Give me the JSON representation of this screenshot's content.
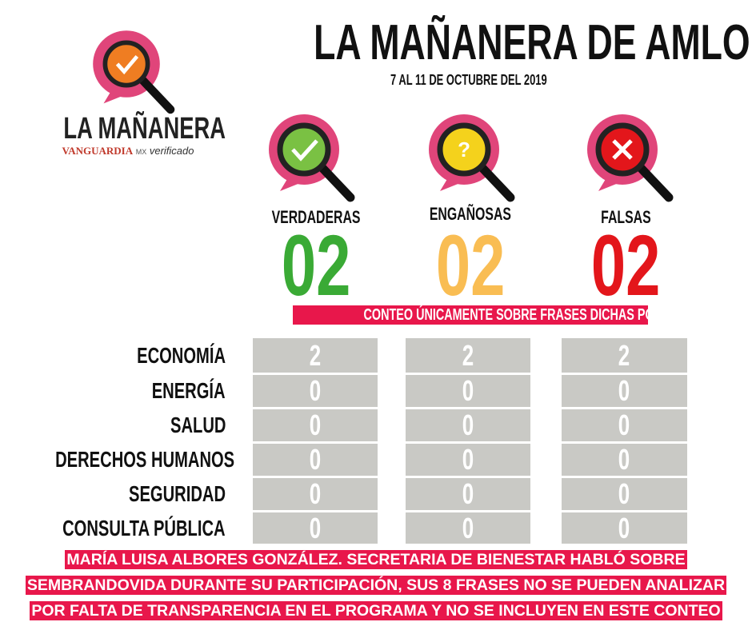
{
  "logo": {
    "title": "LA MAÑANERA",
    "brand": "VANGUARDIA",
    "brand_suffix": "MX",
    "partner": "verificado"
  },
  "header": {
    "title": "LA MAÑANERA DE AMLO",
    "subtitle": "7 AL 11 DE OCTUBRE DEL 2019"
  },
  "summary": [
    {
      "label": "VERDADERAS",
      "count": "02",
      "color": "#3aaa35"
    },
    {
      "label": "ENGAÑOSAS",
      "count": "02",
      "color": "#f9bd53"
    },
    {
      "label": "FALSAS",
      "count": "02",
      "color": "#e3161b"
    }
  ],
  "note": "CONTEO ÚNICAMENTE SOBRE FRASES DICHAS POR INVITADOS",
  "table": {
    "rows": [
      [
        "ECONOMÍA",
        2,
        2,
        2
      ],
      [
        "ENERGÍA",
        0,
        0,
        0
      ],
      [
        "SALUD",
        0,
        0,
        0
      ],
      [
        "DERECHOS HUMANOS",
        0,
        0,
        0
      ],
      [
        "SEGURIDAD",
        0,
        0,
        0
      ],
      [
        "CONSULTA PÚBLICA",
        0,
        0,
        0
      ]
    ]
  },
  "footer": "MARÍA LUISA ALBORES GONZÁLEZ. SECRETARIA DE BIENESTAR HABLÓ SOBRE SEMBRANDOVIDA DURANTE SU PARTICIPACIÓN, SUS 8 FRASES NO SE PUEDEN ANALIZAR POR FALTA DE TRANSPARENCIA EN EL PROGRAMA Y NO SE INCLUYEN EN ESTE CONTEO"
}
